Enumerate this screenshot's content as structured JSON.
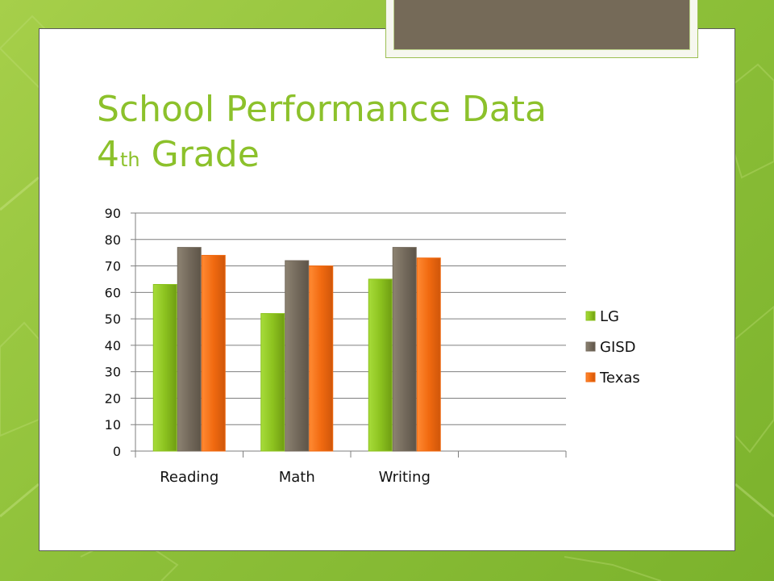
{
  "slide": {
    "title_line1": "School Performance Data",
    "title_line2_number": "4",
    "title_line2_suffix": "th",
    "title_line2_rest": "Grade"
  },
  "colors": {
    "background_green": "#8fc13a",
    "title_green": "#8cc12b",
    "accent_brown": "#756a58"
  },
  "chart_data": {
    "type": "bar",
    "categories": [
      "Reading",
      "Math",
      "Writing",
      ""
    ],
    "series": [
      {
        "name": "LG",
        "values": [
          63,
          52,
          65,
          null
        ],
        "color": "#8cc21f"
      },
      {
        "name": "GISD",
        "values": [
          77,
          72,
          77,
          null
        ],
        "color": "#746a5c"
      },
      {
        "name": "Texas",
        "values": [
          74,
          70,
          73,
          null
        ],
        "color": "#f16a10"
      }
    ],
    "ylim": [
      0,
      90
    ],
    "yticks": [
      0,
      10,
      20,
      30,
      40,
      50,
      60,
      70,
      80,
      90
    ],
    "grid": true,
    "legend": "right",
    "xlabel": "",
    "ylabel": ""
  }
}
